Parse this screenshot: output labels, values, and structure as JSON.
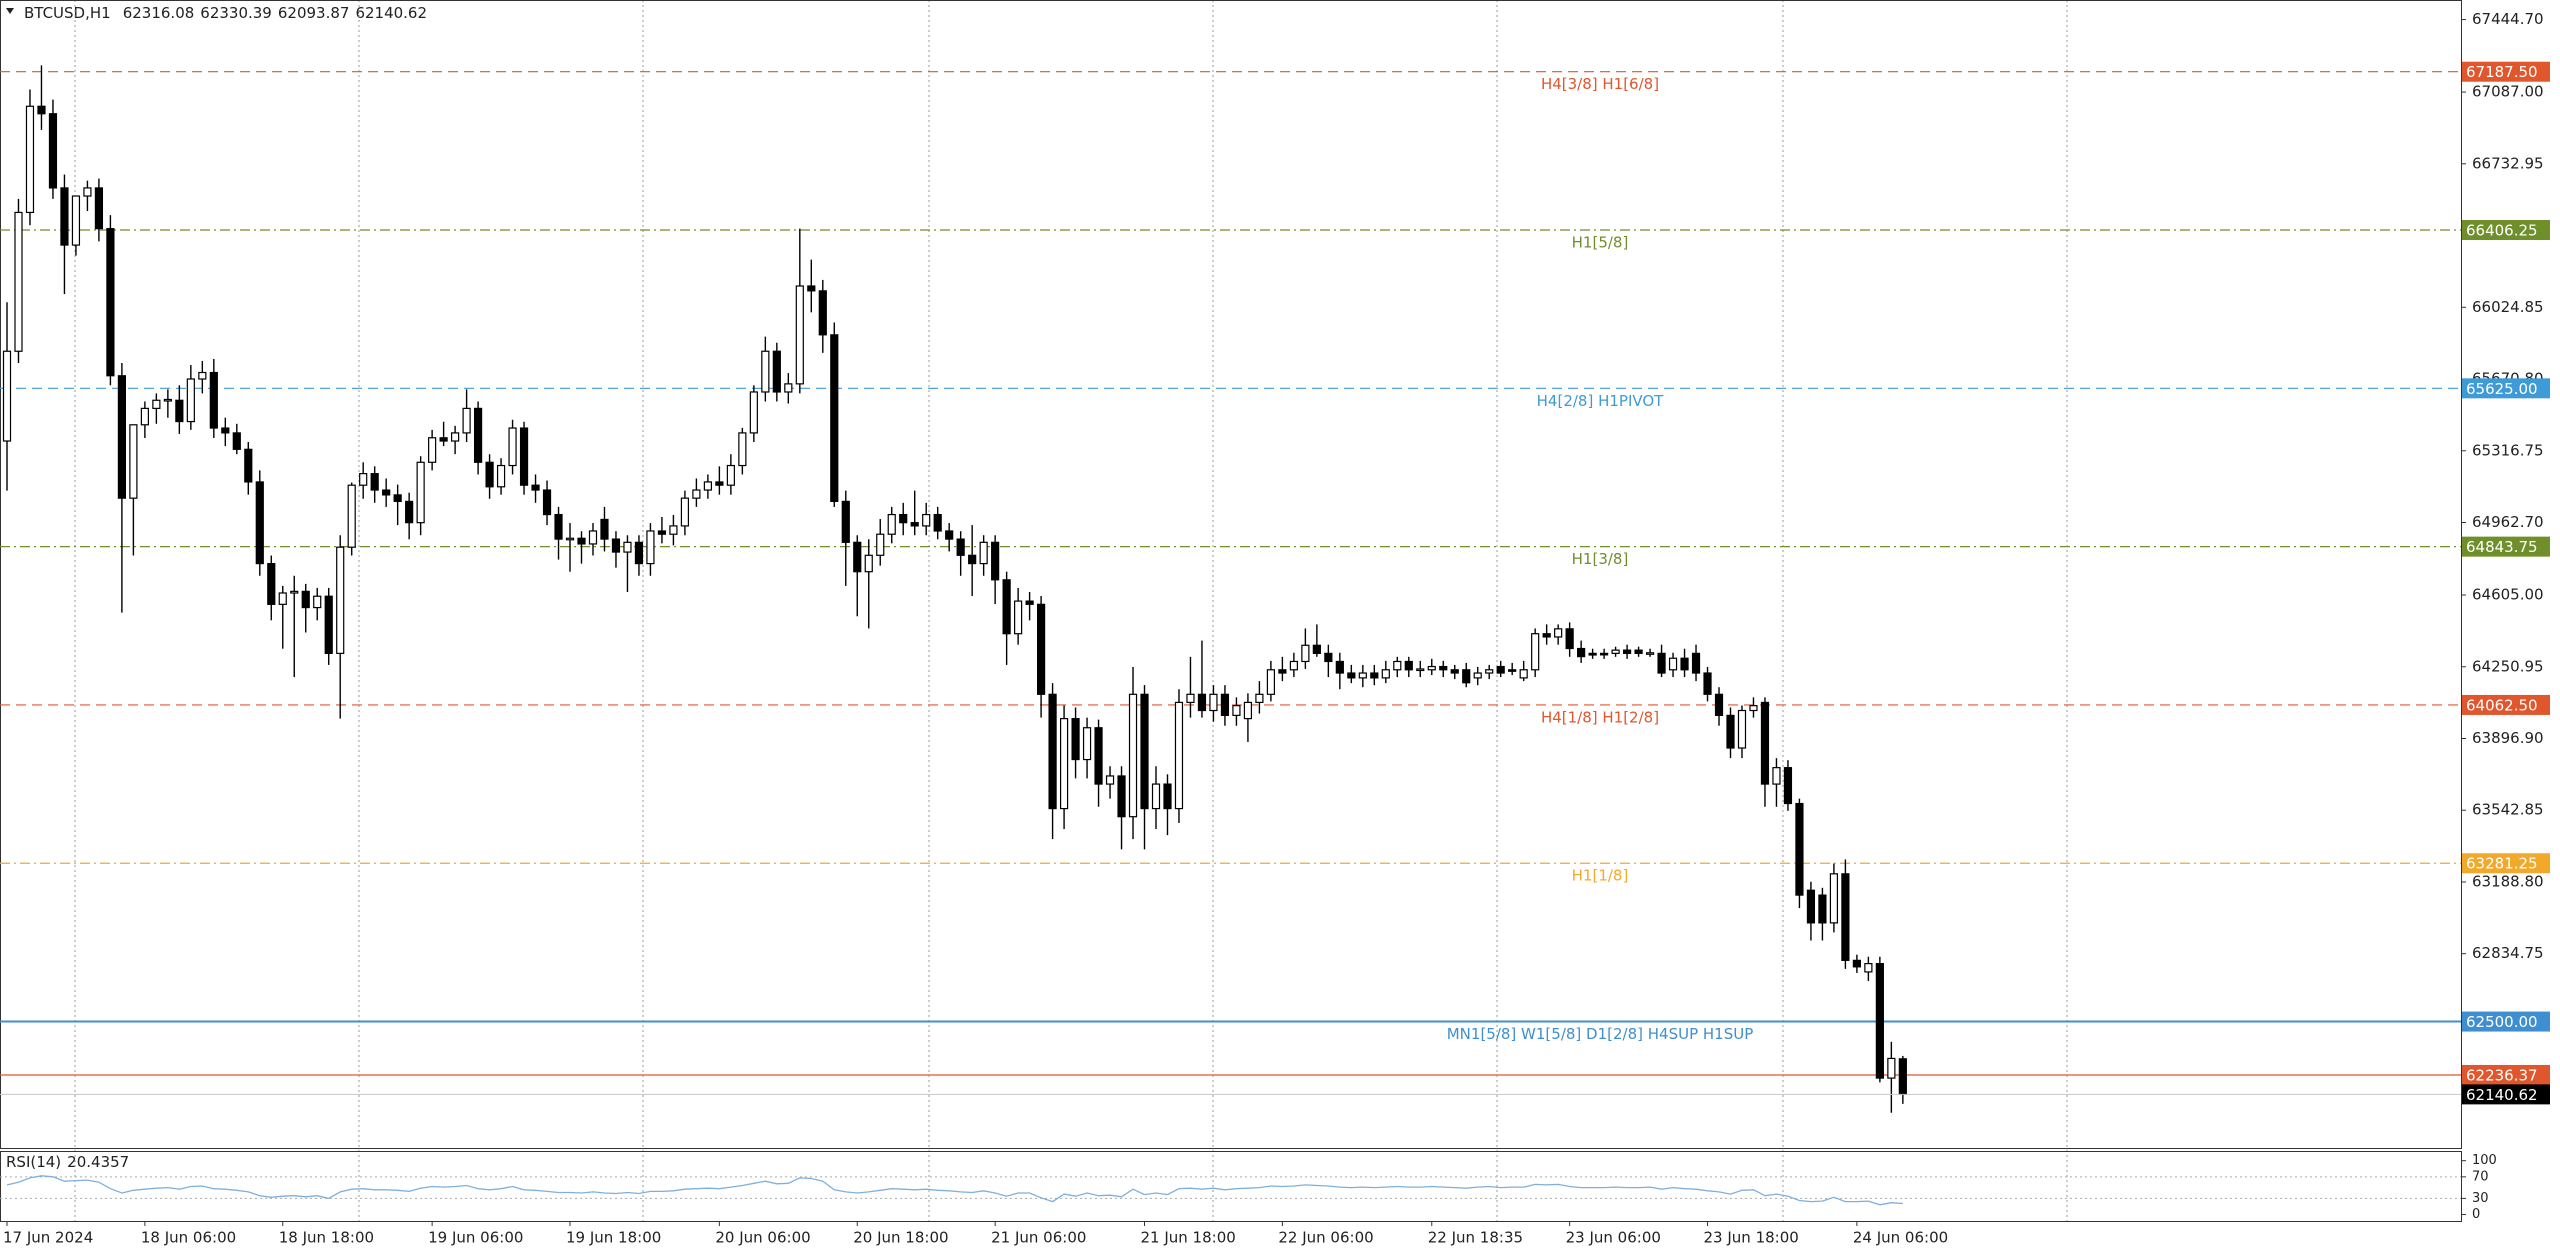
{
  "chart_data": {
    "type": "candlestick",
    "title": "BTCUSD,H1",
    "categories": [
      "17 Jun 2024",
      null,
      null,
      null,
      null,
      null,
      null,
      null,
      null,
      null,
      null,
      null,
      "18 Jun 06:00",
      null,
      null,
      null,
      null,
      null,
      null,
      null,
      null,
      null,
      null,
      null,
      "18 Jun 18:00",
      null,
      null,
      null,
      null,
      null,
      null,
      null,
      null,
      null,
      null,
      null,
      null,
      "19 Jun 06:00",
      null,
      null,
      null,
      null,
      null,
      null,
      null,
      null,
      null,
      null,
      null,
      "19 Jun 18:00",
      null,
      null,
      null,
      null,
      null,
      null,
      null,
      null,
      null,
      null,
      null,
      null,
      "20 Jun 06:00",
      null,
      null,
      null,
      null,
      null,
      null,
      null,
      null,
      null,
      null,
      null,
      "20 Jun 18:00",
      null,
      null,
      null,
      null,
      null,
      null,
      null,
      null,
      null,
      null,
      null,
      "21 Jun 06:00",
      null,
      null,
      null,
      null,
      null,
      null,
      null,
      null,
      null,
      null,
      null,
      null,
      "21 Jun 18:00",
      null,
      null,
      null,
      null,
      null,
      null,
      null,
      null,
      null,
      null,
      null,
      "22 Jun 06:00",
      null,
      null,
      null,
      null,
      null,
      null,
      null,
      null,
      null,
      null,
      null,
      null,
      "22 Jun 18:35",
      null,
      null,
      null,
      null,
      null,
      null,
      null,
      null,
      null,
      null,
      null,
      "23 Jun 06:00",
      null,
      null,
      null,
      null,
      null,
      null,
      null,
      null,
      null,
      null,
      null,
      "23 Jun 18:00",
      null,
      null,
      null,
      null,
      null,
      null,
      null,
      null,
      null,
      null,
      null,
      null,
      "24 Jun 06:00",
      null,
      null,
      null,
      null
    ],
    "open": [
      65365,
      65808,
      66493,
      67017,
      66980,
      66614,
      66332,
      66574,
      66614,
      66413,
      65687,
      65083,
      65445,
      65526,
      65566,
      65566,
      65461,
      65671,
      65703,
      65429,
      65405,
      65324,
      65163,
      64760,
      64559,
      64615,
      64623,
      64543,
      64599,
      64317,
      64841,
      65147,
      65204,
      65123,
      65099,
      65067,
      64962,
      65260,
      65381,
      65365,
      65405,
      65526,
      65260,
      65139,
      65244,
      65429,
      65147,
      65123,
      65002,
      64881,
      64885,
      64857,
      64978,
      64881,
      64817,
      64865,
      64760,
      64921,
      64905,
      64946,
      65083,
      65123,
      65163,
      65147,
      65244,
      65405,
      65607,
      65808,
      65607,
      65647,
      66130,
      66106,
      65889,
      65067,
      64865,
      64720,
      64801,
      64905,
      65002,
      64962,
      64946,
      65002,
      64921,
      64881,
      64801,
      64760,
      64865,
      64680,
      64414,
      64575,
      64559,
      64115,
      63551,
      63995,
      63793,
      63950,
      63672,
      63712,
      63511,
      64115,
      63551,
      63672,
      63551,
      64075,
      64115,
      64035,
      64115,
      64011,
      63995,
      64075,
      64115,
      64236,
      64236,
      64277,
      64357,
      64317,
      64277,
      64220,
      64196,
      64220,
      64196,
      64236,
      64277,
      64236,
      64236,
      64252,
      64236,
      64236,
      64196,
      64220,
      64252,
      64236,
      64196,
      64236,
      64414,
      64398,
      64438,
      64341,
      64317,
      64317,
      64317,
      64333,
      64333,
      64317,
      64317,
      64236,
      64293,
      64317,
      64220,
      64115,
      64011,
      63850,
      64035,
      64075,
      63672,
      63753,
      63576,
      63148,
      63124,
      62987,
      63229,
      62802,
      62745,
      62786,
      62221,
      62316.08
    ],
    "high": [
      66050,
      66560,
      67100,
      67219,
      67050,
      66680,
      66560,
      66650,
      66660,
      66480,
      65750,
      65440,
      65560,
      65600,
      65620,
      65640,
      65740,
      65760,
      65770,
      65480,
      65450,
      65360,
      65220,
      64800,
      64650,
      64700,
      64660,
      64640,
      64640,
      64900,
      65160,
      65260,
      65240,
      65180,
      65150,
      65110,
      65290,
      65420,
      65460,
      65440,
      65620,
      65560,
      65300,
      65280,
      65470,
      65460,
      65200,
      65170,
      65040,
      64960,
      64920,
      64960,
      65040,
      64920,
      64900,
      64900,
      64960,
      64990,
      65000,
      65120,
      65180,
      65200,
      65240,
      65300,
      65430,
      65640,
      65880,
      65850,
      65700,
      66413,
      66260,
      66160,
      65950,
      65120,
      64900,
      64880,
      64980,
      65040,
      65060,
      65120,
      65060,
      65040,
      64960,
      64920,
      64950,
      64900,
      64900,
      64720,
      64640,
      64620,
      64600,
      64170,
      64060,
      64050,
      64000,
      63990,
      63760,
      63760,
      64250,
      64160,
      63760,
      63720,
      64140,
      64300,
      64380,
      64160,
      64160,
      64100,
      64120,
      64180,
      64280,
      64300,
      64320,
      64440,
      64460,
      64360,
      64320,
      64260,
      64260,
      64260,
      64280,
      64300,
      64300,
      64280,
      64290,
      64280,
      64260,
      64270,
      64250,
      64260,
      64280,
      64270,
      64280,
      64440,
      64460,
      64460,
      64470,
      64380,
      64340,
      64340,
      64350,
      64360,
      64350,
      64340,
      64360,
      64320,
      64340,
      64360,
      64250,
      64150,
      64050,
      64060,
      64100,
      64100,
      63800,
      63790,
      63600,
      63190,
      63160,
      63280,
      63300,
      62830,
      62820,
      62820,
      62400,
      62330.39
    ],
    "low": [
      65120,
      65750,
      66430,
      66900,
      66560,
      66090,
      66280,
      66500,
      66350,
      65640,
      64518,
      64800,
      65380,
      65450,
      65480,
      65400,
      65420,
      65600,
      65380,
      65340,
      65300,
      65100,
      64700,
      64480,
      64340,
      64200,
      64420,
      64480,
      64260,
      63995,
      64800,
      65080,
      65060,
      65040,
      64950,
      64880,
      64900,
      65220,
      65340,
      65300,
      65360,
      65200,
      65080,
      65100,
      65200,
      65100,
      65060,
      64950,
      64780,
      64720,
      64760,
      64800,
      64820,
      64740,
      64620,
      64700,
      64700,
      64860,
      64850,
      64900,
      65040,
      65080,
      65100,
      65100,
      65200,
      65360,
      65560,
      65560,
      65550,
      65600,
      66000,
      65800,
      65040,
      64650,
      64500,
      64440,
      64750,
      64860,
      64900,
      64900,
      64900,
      64880,
      64820,
      64700,
      64600,
      64700,
      64560,
      64260,
      64360,
      64480,
      64000,
      63400,
      63450,
      63700,
      63700,
      63560,
      63600,
      63350,
      63400,
      63350,
      63450,
      63420,
      63480,
      64000,
      64000,
      63980,
      63960,
      63960,
      63880,
      64020,
      64080,
      64180,
      64200,
      64240,
      64300,
      64200,
      64140,
      64170,
      64150,
      64160,
      64170,
      64200,
      64200,
      64200,
      64210,
      64200,
      64190,
      64150,
      64160,
      64190,
      64200,
      64210,
      64180,
      64200,
      64360,
      64360,
      64300,
      64270,
      64290,
      64290,
      64300,
      64290,
      64300,
      64300,
      64200,
      64200,
      64200,
      64180,
      64080,
      63960,
      63800,
      63800,
      64000,
      63560,
      63560,
      63540,
      63060,
      62900,
      62900,
      62940,
      62760,
      62740,
      62700,
      62200,
      62050,
      62093.87
    ],
    "close": [
      65808,
      66493,
      67017,
      66980,
      66614,
      66332,
      66574,
      66614,
      66413,
      65687,
      65083,
      65445,
      65526,
      65566,
      65570,
      65461,
      65671,
      65703,
      65429,
      65405,
      65324,
      65163,
      64760,
      64559,
      64615,
      64623,
      64543,
      64599,
      64317,
      64841,
      65147,
      65204,
      65123,
      65099,
      65067,
      64962,
      65260,
      65381,
      65365,
      65405,
      65526,
      65260,
      65139,
      65244,
      65429,
      65147,
      65123,
      65002,
      64881,
      64885,
      64857,
      64921,
      64881,
      64817,
      64865,
      64760,
      64921,
      64905,
      64946,
      65083,
      65123,
      65163,
      65147,
      65244,
      65405,
      65607,
      65808,
      65607,
      65647,
      66130,
      66106,
      65889,
      65067,
      64865,
      64720,
      64801,
      64905,
      65002,
      64962,
      64946,
      65002,
      64921,
      64881,
      64801,
      64760,
      64865,
      64680,
      64414,
      64575,
      64559,
      64115,
      63551,
      63995,
      63793,
      63950,
      63672,
      63712,
      63511,
      64115,
      63551,
      63672,
      63551,
      64075,
      64115,
      64035,
      64115,
      64011,
      64059,
      64075,
      64115,
      64236,
      64220,
      64277,
      64357,
      64317,
      64277,
      64220,
      64196,
      64220,
      64196,
      64236,
      64277,
      64236,
      64240,
      64252,
      64236,
      64220,
      64172,
      64220,
      64236,
      64220,
      64232,
      64236,
      64414,
      64398,
      64438,
      64341,
      64301,
      64309,
      64310,
      64333,
      64317,
      64317,
      64320,
      64220,
      64293,
      64236,
      64220,
      64115,
      64011,
      63850,
      64035,
      64059,
      63672,
      63753,
      63576,
      63124,
      62987,
      62987,
      63229,
      62802,
      62770,
      62786,
      62221,
      62318,
      62140.62
    ],
    "bull_color": "#ffffff",
    "bear_color": "#000000",
    "ylim": [
      61876,
      67541.4
    ],
    "yticks": [
      {
        "value": 67444.7,
        "label": "67444.70"
      },
      {
        "value": 67087,
        "label": "67087.00"
      },
      66732.95,
      66024.85,
      {
        "value": 65670.8,
        "label": "65670.80"
      },
      65316.75,
      {
        "value": 64962.7,
        "label": "64962.70"
      },
      {
        "value": 64605,
        "label": "64605.00"
      },
      64250.95,
      {
        "value": 63896.9,
        "label": "63896.90"
      },
      63542.85,
      {
        "value": 63188.8,
        "label": "63188.80"
      },
      62834.75
    ],
    "levels": [
      {
        "value": 67187.5,
        "label": "67187.50",
        "text": "H4[3/8] H1[6/8]",
        "color": "#e0562d",
        "line_style": "dashed"
      },
      {
        "value": 66406.25,
        "label": "66406.25",
        "text": "H1[5/8]",
        "color": "#6f8f2b",
        "line_style": "dashdot"
      },
      {
        "value": 65625,
        "label": "65625.00",
        "text": "H4[2/8] H1PIVOT",
        "color": "#3f9bd8",
        "line_style": "dashed"
      },
      {
        "value": 64843.75,
        "label": "64843.75",
        "text": "H1[3/8]",
        "color": "#6f8f2b",
        "line_style": "dashdot"
      },
      {
        "value": 64062.5,
        "label": "64062.50",
        "text": "H4[1/8] H1[2/8]",
        "color": "#e0562d",
        "line_style": "dashed"
      },
      {
        "value": 63281.25,
        "label": "63281.25",
        "text": "H1[1/8]",
        "color": "#f2a92b",
        "line_style": "dashdot"
      },
      {
        "value": 62500,
        "label": "62500.00",
        "text": "MN1[5/8] W1[5/8] D1[2/8] H4SUP H1SUP",
        "color": "#3f8fd0",
        "line_style": "solid"
      },
      {
        "value": 62236.37,
        "color": "#e0562d",
        "line_style": "solid"
      }
    ],
    "rsi": {
      "label": "RSI(14)",
      "color": "#7fb0dc",
      "ylim": [
        -12,
        118
      ],
      "yticks": [
        100,
        70,
        30,
        0
      ],
      "levels": [
        70,
        30
      ],
      "values": [
        55,
        60,
        68,
        72,
        70,
        62,
        63,
        64,
        60,
        48,
        40,
        45,
        47,
        49,
        50,
        47,
        52,
        53,
        48,
        47,
        45,
        42,
        35,
        32,
        34,
        35,
        33,
        35,
        30,
        42,
        47,
        48,
        46,
        46,
        45,
        43,
        49,
        52,
        51,
        52,
        54,
        48,
        46,
        48,
        52,
        46,
        45,
        43,
        41,
        41,
        40,
        42,
        40,
        39,
        41,
        39,
        43,
        43,
        44,
        47,
        48,
        49,
        48,
        51,
        54,
        58,
        62,
        57,
        58,
        68,
        67,
        62,
        46,
        42,
        40,
        42,
        45,
        48,
        47,
        46,
        47,
        45,
        44,
        42,
        41,
        44,
        40,
        34,
        40,
        40,
        31,
        24,
        38,
        34,
        40,
        35,
        36,
        33,
        47,
        37,
        40,
        37,
        48,
        49,
        47,
        49,
        46,
        48,
        49,
        50,
        53,
        52,
        53,
        55,
        54,
        53,
        51,
        50,
        51,
        50,
        51,
        52,
        51,
        51,
        52,
        51,
        50,
        49,
        51,
        52,
        50,
        51,
        51,
        56,
        55,
        56,
        52,
        50,
        50,
        50,
        51,
        50,
        50,
        51,
        47,
        50,
        48,
        47,
        44,
        42,
        38,
        45,
        46,
        35,
        38,
        34,
        26,
        24,
        25,
        32,
        24,
        24,
        25,
        18,
        22,
        20.4357
      ]
    }
  }
}
